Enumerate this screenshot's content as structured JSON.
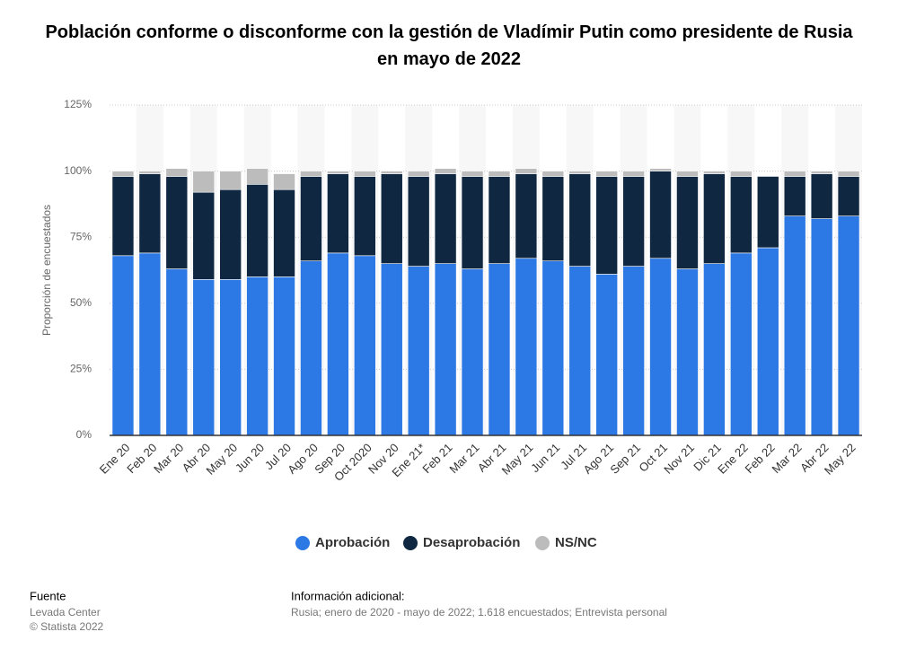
{
  "chart_data": {
    "type": "stacked_bar",
    "title": "Población conforme o disconforme con la gestión de Vladímir Putin como presidente de Rusia en mayo de 2022",
    "y_label": "Proporción de encuestados",
    "categories": [
      "Ene 20",
      "Feb 20",
      "Mar 20",
      "Abr 20",
      "May 20",
      "Jun 20",
      "Jul 20",
      "Ago 20",
      "Sep 20",
      "Oct 2020",
      "Nov 20",
      "Ene 21*",
      "Feb 21",
      "Mar 21",
      "Abr 21",
      "May 21",
      "Jun 21",
      "Jul 21",
      "Ago 21",
      "Sep 21",
      "Oct 21",
      "Nov 21",
      "Dic 21",
      "Ene 22",
      "Feb 22",
      "Mar 22",
      "Abr 22",
      "May 22"
    ],
    "series": [
      {
        "name": "Aprobación",
        "color": "#2c78e4",
        "values": [
          68,
          69,
          63,
          59,
          59,
          60,
          60,
          66,
          69,
          68,
          65,
          64,
          65,
          63,
          65,
          67,
          66,
          64,
          61,
          64,
          67,
          63,
          65,
          69,
          71,
          83,
          82,
          83
        ]
      },
      {
        "name": "Desaprobación",
        "color": "#0f2740",
        "values": [
          30,
          30,
          35,
          33,
          34,
          35,
          33,
          32,
          30,
          30,
          34,
          34,
          34,
          35,
          33,
          32,
          32,
          35,
          37,
          34,
          33,
          35,
          34,
          29,
          27,
          15,
          17,
          15
        ]
      },
      {
        "name": "NS/NC",
        "color": "#bcbcbc",
        "values": [
          2,
          1,
          3,
          8,
          7,
          6,
          6,
          2,
          1,
          2,
          1,
          2,
          2,
          2,
          2,
          2,
          2,
          1,
          2,
          2,
          1,
          2,
          1,
          2,
          0,
          2,
          1,
          2
        ]
      }
    ],
    "ylim": [
      0,
      125
    ],
    "yticks": [
      {
        "value": 0,
        "label": "0%"
      },
      {
        "value": 25,
        "label": "25%"
      },
      {
        "value": 50,
        "label": "50%"
      },
      {
        "value": 75,
        "label": "75%"
      },
      {
        "value": 100,
        "label": "100%"
      },
      {
        "value": 125,
        "label": "125%"
      }
    ],
    "grid": true,
    "footer": {
      "source_title": "Fuente",
      "source": "Levada Center",
      "copyright": "© Statista 2022",
      "info_title": "Información adicional:",
      "info": "Rusia; enero de 2020 - mayo de 2022; 1.618 encuestados; Entrevista personal"
    }
  }
}
